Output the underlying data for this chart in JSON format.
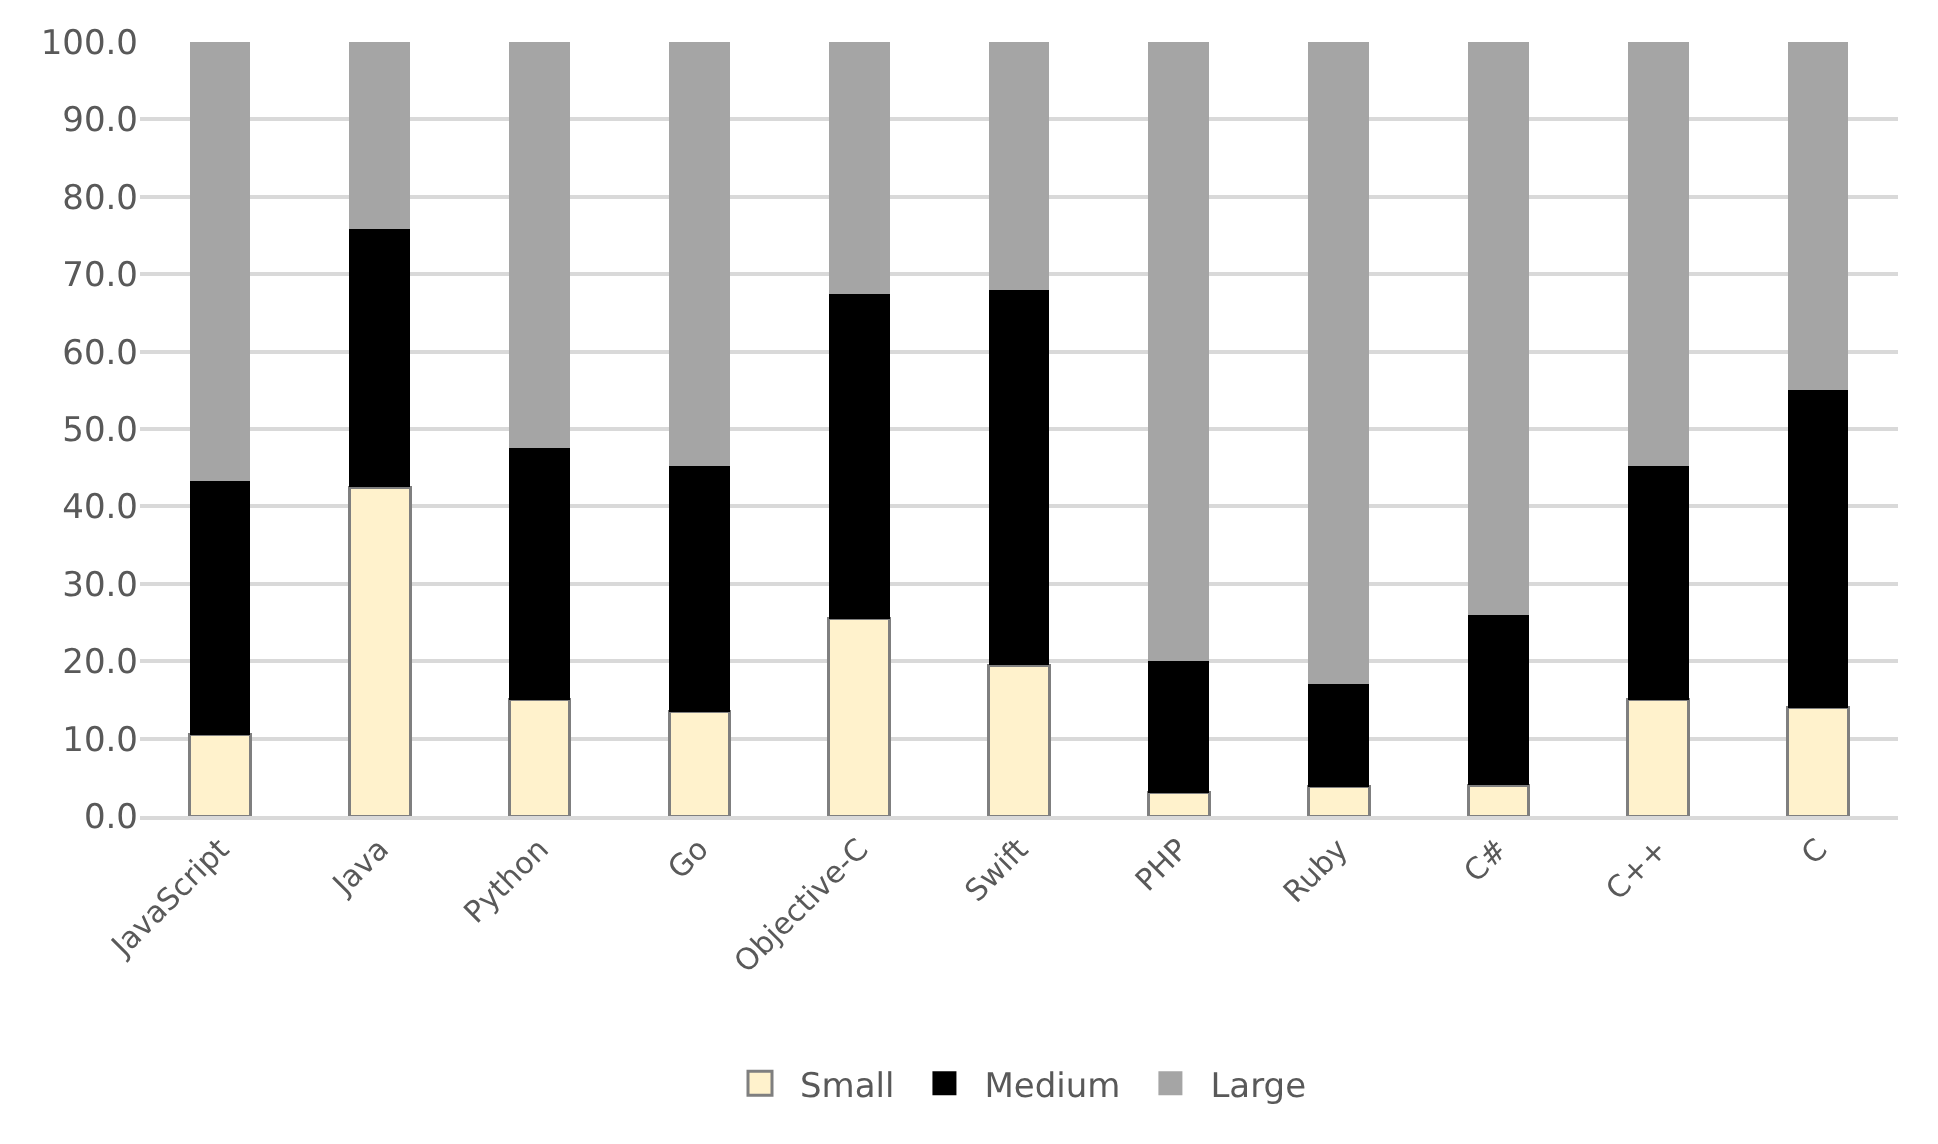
{
  "chart_data": {
    "type": "bar",
    "stacked": true,
    "categories": [
      "JavaScript",
      "Java",
      "Python",
      "Go",
      "Objective-C",
      "Swift",
      "PHP",
      "Ruby",
      "C#",
      "C++",
      "C"
    ],
    "series": [
      {
        "name": "Small",
        "color": "#fff2cc",
        "values": [
          10.5,
          42.5,
          15,
          13.5,
          25.5,
          19.5,
          3,
          3.8,
          4,
          15,
          14
        ]
      },
      {
        "name": "Medium",
        "color": "#000000",
        "values": [
          32.8,
          33.3,
          32.5,
          31.7,
          42,
          48.5,
          17,
          13.2,
          22,
          30.2,
          41
        ]
      },
      {
        "name": "Large",
        "color": "#a5a5a5",
        "values": [
          56.7,
          24.2,
          52.5,
          54.8,
          32.5,
          32,
          80,
          83,
          74,
          54.8,
          45
        ]
      }
    ],
    "ylim": [
      0,
      100
    ],
    "yticks": [
      {
        "value": 0,
        "label": "0.0"
      },
      {
        "value": 10,
        "label": "10.0"
      },
      {
        "value": 20,
        "label": "20.0"
      },
      {
        "value": 30,
        "label": "30.0"
      },
      {
        "value": 40,
        "label": "40.0"
      },
      {
        "value": 50,
        "label": "50.0"
      },
      {
        "value": 60,
        "label": "60.0"
      },
      {
        "value": 70,
        "label": "70.0"
      },
      {
        "value": 80,
        "label": "80.0"
      },
      {
        "value": 90,
        "label": "90.0"
      },
      {
        "value": 100,
        "label": "100.0"
      }
    ],
    "grid": "y",
    "legend": "bottom"
  }
}
